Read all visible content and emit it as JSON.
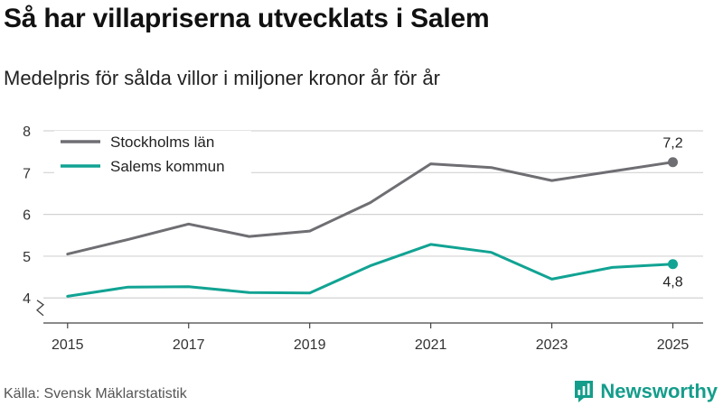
{
  "header": {
    "title": "Så har villapriserna utvecklats i Salem",
    "subtitle": "Medelpris för sålda villor i miljoner kronor år för år"
  },
  "footer": {
    "source": "Källa: Svensk Mäklarstatistik",
    "brand": "Newsworthy"
  },
  "colors": {
    "stockholm": "#6e6e73",
    "salem": "#11a393",
    "grid": "#d3d3d3",
    "axis": "#444444",
    "brand": "#149d8b"
  },
  "chart_data": {
    "type": "line",
    "title": "Så har villapriserna utvecklats i Salem",
    "subtitle": "Medelpris för sålda villor i miljoner kronor år för år",
    "xlabel": "",
    "ylabel": "",
    "x": [
      2015,
      2016,
      2017,
      2018,
      2019,
      2020,
      2021,
      2022,
      2023,
      2024,
      2025
    ],
    "x_tick_labels": [
      "2015",
      "2017",
      "2019",
      "2021",
      "2023",
      "2025"
    ],
    "x_ticks": [
      2015,
      2017,
      2019,
      2021,
      2023,
      2025
    ],
    "y_tick_labels": [
      "4",
      "5",
      "6",
      "7",
      "8"
    ],
    "y_ticks": [
      4,
      5,
      6,
      7,
      8
    ],
    "ylim": [
      3.4,
      8
    ],
    "xlim": [
      2014.6,
      2025.5
    ],
    "axis_break": true,
    "grid": true,
    "legend_position": "top-left",
    "series": [
      {
        "name": "Stockholms län",
        "color": "#6e6e73",
        "values": [
          5.05,
          5.4,
          5.77,
          5.47,
          5.6,
          6.28,
          7.21,
          7.12,
          6.81,
          7.03,
          7.25
        ],
        "end_label": "7,2"
      },
      {
        "name": "Salems kommun",
        "color": "#11a393",
        "values": [
          4.04,
          4.26,
          4.27,
          4.13,
          4.12,
          4.77,
          5.28,
          5.09,
          4.45,
          4.73,
          4.81
        ],
        "end_label": "4,8"
      }
    ]
  }
}
